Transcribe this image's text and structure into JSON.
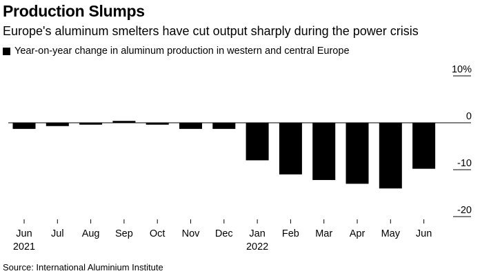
{
  "title": "Production Slumps",
  "subtitle": "Europe's aluminum smelters have cut output sharply during the power crisis",
  "source": "Source: International Aluminium Institute",
  "colors": {
    "bar": "#000000",
    "axis": "#000000",
    "background": "#ffffff"
  },
  "chart_data": {
    "type": "bar",
    "title": "Production Slumps",
    "subtitle": "Europe's aluminum smelters have cut output sharply during the power crisis",
    "legend": [
      "Year-on-year change in aluminum production in western and central Europe"
    ],
    "categories": [
      "Jun",
      "Jul",
      "Aug",
      "Sep",
      "Oct",
      "Nov",
      "Dec",
      "Jan",
      "Feb",
      "Mar",
      "Apr",
      "May",
      "Jun"
    ],
    "year_labels": [
      "2021",
      "",
      "",
      "",
      "",
      "",
      "",
      "2022",
      "",
      "",
      "",
      "",
      ""
    ],
    "series": [
      {
        "name": "Year-on-year change in aluminum production in western and central Europe",
        "values": [
          -1.3,
          -0.7,
          -0.4,
          0.4,
          -0.4,
          -1.3,
          -1.3,
          -8.0,
          -11.0,
          -12.2,
          -13.0,
          -14.0,
          -9.8
        ]
      }
    ],
    "y_ticks": [
      10,
      0,
      -10,
      -20
    ],
    "y_tick_labels": [
      "10%",
      "0",
      "-10",
      "-20"
    ],
    "ylim": [
      -22,
      12
    ],
    "xlabel": "",
    "ylabel": "",
    "source": "Source: International Aluminium Institute"
  }
}
